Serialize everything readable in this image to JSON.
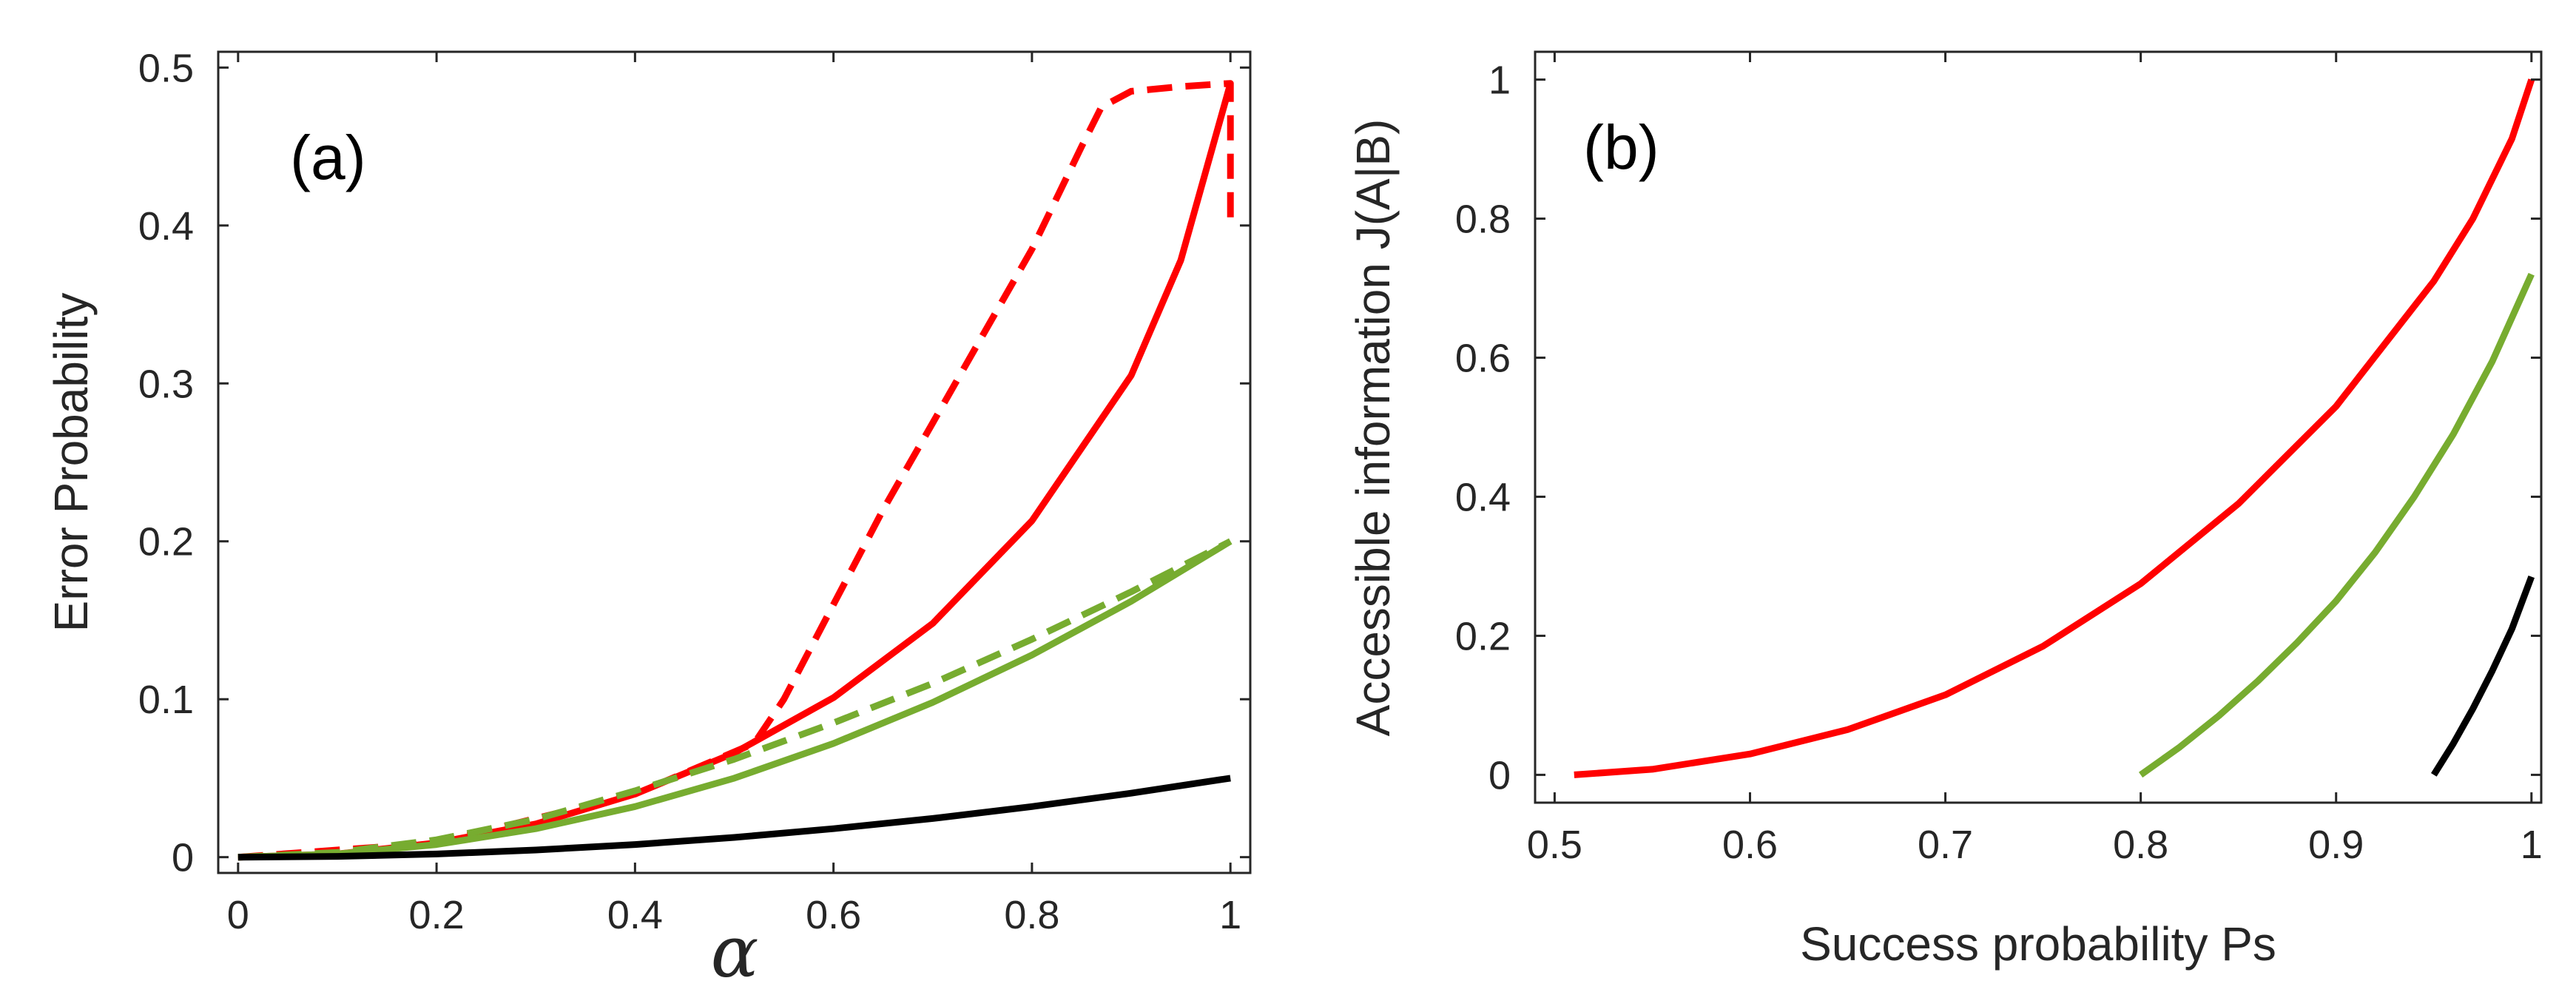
{
  "colors": {
    "red": "#ff0000",
    "green": "#77ac30",
    "black": "#000000",
    "axis": "#262626"
  },
  "chart_data": [
    {
      "id": "a",
      "type": "line",
      "panel_label": "(a)",
      "xlabel": "α",
      "ylabel": "Error Probability",
      "xlim": [
        -0.02,
        1.02
      ],
      "ylim": [
        -0.01,
        0.51
      ],
      "xticks": [
        0,
        0.2,
        0.4,
        0.6,
        0.8,
        1
      ],
      "xtick_labels": [
        "0",
        "0.2",
        "0.4",
        "0.6",
        "0.8",
        "1"
      ],
      "yticks": [
        0,
        0.1,
        0.2,
        0.3,
        0.4,
        0.5
      ],
      "ytick_labels": [
        "0",
        "0.1",
        "0.2",
        "0.3",
        "0.4",
        "0.5"
      ],
      "series": [
        {
          "name": "red-solid",
          "color": "red",
          "dashed": false,
          "x": [
            0,
            0.1,
            0.2,
            0.3,
            0.4,
            0.5,
            0.6,
            0.7,
            0.8,
            0.9,
            0.95,
            1.0
          ],
          "y": [
            0,
            0.002,
            0.009,
            0.021,
            0.04,
            0.066,
            0.101,
            0.148,
            0.213,
            0.305,
            0.378,
            0.49
          ]
        },
        {
          "name": "red-dashed",
          "color": "red",
          "dashed": true,
          "x": [
            0,
            0.2,
            0.4,
            0.52,
            0.55,
            0.6,
            0.65,
            0.7,
            0.75,
            0.8,
            0.85,
            0.87,
            0.9,
            0.95,
            1.0,
            1.0
          ],
          "y": [
            0,
            0.009,
            0.04,
            0.072,
            0.1,
            0.16,
            0.22,
            0.275,
            0.33,
            0.385,
            0.45,
            0.475,
            0.485,
            0.488,
            0.49,
            0.4
          ]
        },
        {
          "name": "green-solid",
          "color": "green",
          "dashed": false,
          "x": [
            0,
            0.1,
            0.2,
            0.3,
            0.4,
            0.5,
            0.6,
            0.7,
            0.8,
            0.9,
            1.0
          ],
          "y": [
            0,
            0.002,
            0.008,
            0.018,
            0.032,
            0.05,
            0.072,
            0.098,
            0.128,
            0.162,
            0.2
          ]
        },
        {
          "name": "green-dashed",
          "color": "green",
          "dashed": true,
          "x": [
            0,
            0.1,
            0.2,
            0.3,
            0.4,
            0.5,
            0.6,
            0.7,
            0.8,
            0.9,
            1.0
          ],
          "y": [
            0,
            0.003,
            0.011,
            0.024,
            0.042,
            0.062,
            0.085,
            0.11,
            0.138,
            0.168,
            0.2
          ]
        },
        {
          "name": "black-solid",
          "color": "black",
          "dashed": false,
          "x": [
            0,
            0.1,
            0.2,
            0.3,
            0.4,
            0.5,
            0.6,
            0.7,
            0.8,
            0.9,
            1.0
          ],
          "y": [
            0,
            0.0005,
            0.002,
            0.0045,
            0.008,
            0.0125,
            0.018,
            0.0245,
            0.032,
            0.0405,
            0.05
          ]
        }
      ]
    },
    {
      "id": "b",
      "type": "line",
      "panel_label": "(b)",
      "xlabel": "Success probability Ps",
      "ylabel": "Accessible information J(A|B)",
      "xlim": [
        0.49,
        1.005
      ],
      "ylim": [
        -0.04,
        1.04
      ],
      "xticks": [
        0.5,
        0.6,
        0.7,
        0.8,
        0.9,
        1
      ],
      "xtick_labels": [
        "0.5",
        "0.6",
        "0.7",
        "0.8",
        "0.9",
        "1"
      ],
      "yticks": [
        0,
        0.2,
        0.4,
        0.6,
        0.8,
        1
      ],
      "ytick_labels": [
        "0",
        "0.2",
        "0.4",
        "0.6",
        "0.8",
        "1"
      ],
      "series": [
        {
          "name": "red-curve",
          "color": "red",
          "dashed": false,
          "x": [
            0.51,
            0.55,
            0.6,
            0.65,
            0.7,
            0.75,
            0.8,
            0.85,
            0.9,
            0.95,
            0.97,
            0.99,
            1.0
          ],
          "y": [
            0,
            0.008,
            0.03,
            0.065,
            0.115,
            0.185,
            0.275,
            0.39,
            0.53,
            0.71,
            0.8,
            0.915,
            1.0
          ]
        },
        {
          "name": "green-curve",
          "color": "green",
          "dashed": false,
          "x": [
            0.8,
            0.82,
            0.84,
            0.86,
            0.88,
            0.9,
            0.92,
            0.94,
            0.96,
            0.98,
            1.0
          ],
          "y": [
            0,
            0.04,
            0.085,
            0.135,
            0.19,
            0.25,
            0.32,
            0.4,
            0.49,
            0.595,
            0.72
          ]
        },
        {
          "name": "black-curve",
          "color": "black",
          "dashed": false,
          "x": [
            0.95,
            0.96,
            0.97,
            0.98,
            0.99,
            1.0
          ],
          "y": [
            0,
            0.045,
            0.095,
            0.15,
            0.21,
            0.285
          ]
        }
      ]
    }
  ]
}
